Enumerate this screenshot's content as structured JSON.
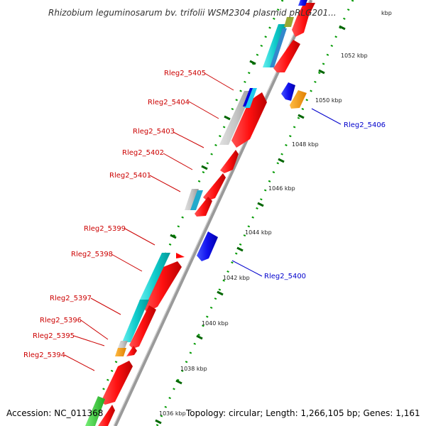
{
  "title": "Rhizobium leguminosarum bv. trifolii WSM2304 plasmid pRLG201...",
  "title_suffix": "kbp",
  "footer": {
    "accession": "Accession: NC_011368",
    "topology": "Topology: circular; Length: 1,266,105 bp; Genes: 1,161"
  },
  "ticks": [
    "1052 kbp",
    "1050 kbp",
    "1048 kbp",
    "1046 kbp",
    "1044 kbp",
    "1042 kbp",
    "1040 kbp",
    "1038 kbp",
    "1036 kbp"
  ],
  "genes_left": [
    "Rleg2_5405",
    "Rleg2_5404",
    "Rleg2_5403",
    "Rleg2_5402",
    "Rleg2_5401",
    "Rleg2_5399",
    "Rleg2_5398",
    "Rleg2_5397",
    "Rleg2_5396",
    "Rleg2_5395",
    "Rleg2_5394"
  ],
  "genes_right": [
    "Rleg2_5406",
    "Rleg2_5400"
  ],
  "colors": {
    "forward": "#ff0000",
    "reverse": "#0000ff",
    "cyan": "#00cccc",
    "grey": "#c0c0c0",
    "orange": "#ff9900",
    "green": "#33cc33",
    "olive": "#99aa33",
    "backbone": "#888888",
    "left_label": "#cc0000",
    "right_label": "#0000cc",
    "tick_major": "#006600",
    "tick_minor": "#009900"
  }
}
